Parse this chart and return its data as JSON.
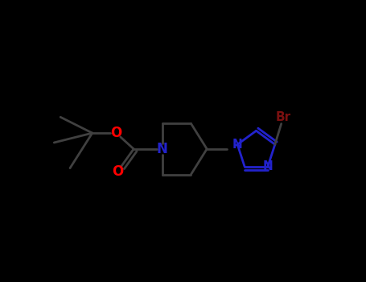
{
  "background_color": "#000000",
  "bond_color": "#404040",
  "bond_width": 2.0,
  "atom_colors": {
    "O": "#ff0000",
    "N": "#2222cc",
    "Br": "#7a1010",
    "C": "#404040"
  },
  "figsize": [
    4.55,
    3.5
  ],
  "dpi": 100,
  "xlim": [
    -1.0,
    10.5
  ],
  "ylim": [
    2.0,
    8.5
  ]
}
